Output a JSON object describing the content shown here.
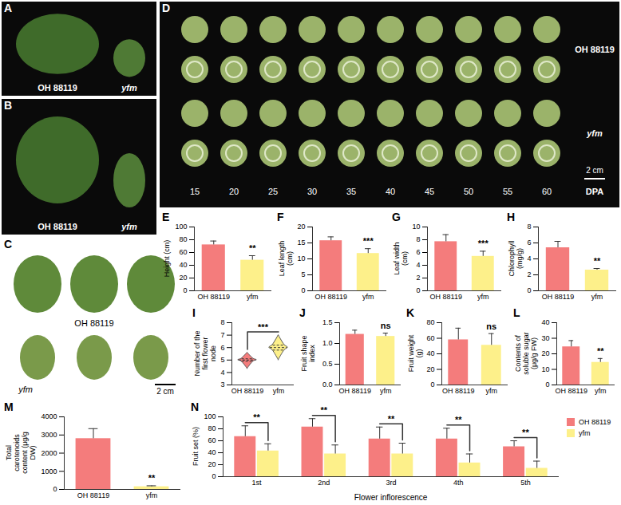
{
  "photos": [
    {
      "panel": "A",
      "labels": [
        "OH 88119",
        "yfm"
      ]
    },
    {
      "panel": "B",
      "labels": [
        "OH 88119",
        "yfm"
      ]
    },
    {
      "panel": "C",
      "labels": [
        "OH 88119",
        "yfm"
      ],
      "scale_bar": "2 cm"
    },
    {
      "panel": "D",
      "labels": [
        "OH 88119",
        "yfm"
      ],
      "days": [
        15,
        20,
        25,
        30,
        35,
        40,
        45,
        50,
        55,
        60
      ],
      "day_unit": "DPA",
      "scale_bar": "2 cm"
    }
  ],
  "chart_data": [
    {
      "panel": "E",
      "type": "bar",
      "y_label": "Height (cm)",
      "categories": [
        "OH 88119",
        "yfm"
      ],
      "values": [
        72,
        48
      ],
      "errors": [
        6,
        7
      ],
      "colors": [
        "#f47c7c",
        "#fdf08a"
      ],
      "ylim": [
        0,
        100
      ],
      "yticks": [
        0,
        20,
        40,
        60,
        80,
        100
      ],
      "annotation": "**"
    },
    {
      "panel": "F",
      "type": "bar",
      "y_label": "Leaf length (cm)",
      "categories": [
        "OH 88119",
        "yfm"
      ],
      "values": [
        15.7,
        11.7
      ],
      "errors": [
        1.2,
        1.5
      ],
      "colors": [
        "#f47c7c",
        "#fdf08a"
      ],
      "ylim": [
        0,
        20
      ],
      "yticks": [
        0,
        5,
        10,
        15,
        20
      ],
      "annotation": "***"
    },
    {
      "panel": "G",
      "type": "bar",
      "y_label": "Leaf width (cm)",
      "categories": [
        "OH 88119",
        "yfm"
      ],
      "values": [
        7.7,
        5.4
      ],
      "errors": [
        1.1,
        0.8
      ],
      "colors": [
        "#f47c7c",
        "#fdf08a"
      ],
      "ylim": [
        0,
        10
      ],
      "yticks": [
        0,
        2,
        4,
        6,
        8,
        10
      ],
      "annotation": "***"
    },
    {
      "panel": "H",
      "type": "bar",
      "y_label": "Chlorophyll (mg/g)",
      "categories": [
        "OH 88119",
        "yfm"
      ],
      "values": [
        5.4,
        2.6
      ],
      "errors": [
        0.8,
        0.2
      ],
      "colors": [
        "#f47c7c",
        "#fdf08a"
      ],
      "ylim": [
        0,
        8
      ],
      "yticks": [
        0,
        2,
        4,
        6,
        8
      ],
      "annotation": "**"
    },
    {
      "panel": "I",
      "type": "violin",
      "y_label": "Number of the first flower node",
      "categories": [
        "OH 88119",
        "yfm"
      ],
      "min": [
        4.3,
        5
      ],
      "q1": [
        4.9,
        5.8
      ],
      "median": [
        5,
        6
      ],
      "q3": [
        5.1,
        6.2
      ],
      "max": [
        5.6,
        7
      ],
      "colors": [
        "#f47c7c",
        "#fdf08a"
      ],
      "ylim": [
        3,
        8
      ],
      "yticks": [
        3,
        4,
        5,
        6,
        7,
        8
      ],
      "annotation": "***"
    },
    {
      "panel": "J",
      "type": "bar",
      "y_label": "Fruit shape index",
      "categories": [
        "OH 88119",
        "yfm"
      ],
      "values": [
        1.22,
        1.17
      ],
      "errors": [
        0.1,
        0.08
      ],
      "colors": [
        "#f47c7c",
        "#fdf08a"
      ],
      "ylim": [
        0,
        1.5
      ],
      "yticks": [
        {
          "value": 0,
          "label": "0.0"
        },
        {
          "value": 0.5,
          "label": "0.5"
        },
        {
          "value": 1,
          "label": "1.0"
        },
        {
          "value": 1.5,
          "label": "1.5"
        }
      ],
      "annotation": "ns"
    },
    {
      "panel": "K",
      "type": "bar",
      "y_label": "Fruit weight (g)",
      "categories": [
        "OH 88119",
        "yfm"
      ],
      "values": [
        58,
        51
      ],
      "errors": [
        15,
        15
      ],
      "colors": [
        "#f47c7c",
        "#fdf08a"
      ],
      "ylim": [
        0,
        80
      ],
      "yticks": [
        0,
        20,
        40,
        60,
        80
      ],
      "annotation": "ns"
    },
    {
      "panel": "L",
      "type": "bar",
      "y_label": "Contents of soluble sugar (μg/g FW)",
      "categories": [
        "OH 88119",
        "yfm"
      ],
      "values": [
        24.5,
        14.5
      ],
      "errors": [
        4,
        2.5
      ],
      "colors": [
        "#f47c7c",
        "#fdf08a"
      ],
      "ylim": [
        0,
        40
      ],
      "yticks": [
        0,
        10,
        20,
        30,
        40
      ],
      "annotation": "**"
    },
    {
      "panel": "M",
      "type": "bar",
      "y_label": "Total carotenoids content (μg/g DW)",
      "categories": [
        "OH 88119",
        "yfm"
      ],
      "values": [
        2800,
        150
      ],
      "errors": [
        550,
        50
      ],
      "colors": [
        "#f47c7c",
        "#fdf08a"
      ],
      "ylim": [
        0,
        4000
      ],
      "yticks": [
        0,
        1000,
        2000,
        3000,
        4000
      ],
      "annotation": "**"
    },
    {
      "panel": "N",
      "type": "bar",
      "y_label": "Fruit set (%)",
      "x_label": "Flower inflorescence",
      "categories": [
        "1st",
        "2nd",
        "3rd",
        "4th",
        "5th"
      ],
      "series": [
        {
          "name": "OH 88119",
          "color": "#f47c7c",
          "values": [
            67,
            83,
            63,
            63,
            50
          ],
          "errors": [
            18,
            14,
            20,
            18,
            10
          ]
        },
        {
          "name": "yfm",
          "color": "#fdf08a",
          "values": [
            43,
            38,
            38,
            23,
            14
          ],
          "errors": [
            12,
            15,
            18,
            15,
            12
          ]
        }
      ],
      "ylim": [
        0,
        100
      ],
      "yticks": [
        0,
        20,
        40,
        60,
        80,
        100
      ],
      "legend": "right",
      "annotations": [
        "**",
        "**",
        "**",
        "**",
        "**"
      ]
    }
  ]
}
